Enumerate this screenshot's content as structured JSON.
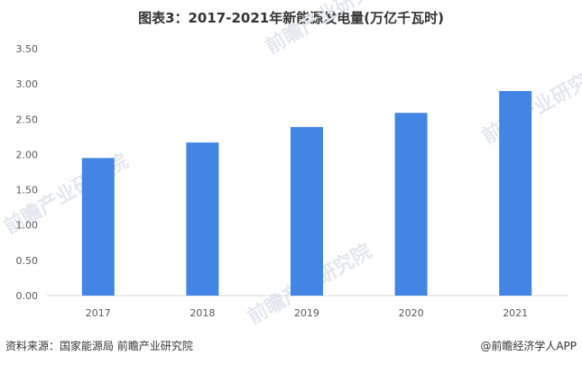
{
  "title": "图表3：2017-2021年新能源发电量(万亿千瓦时)",
  "watermark": {
    "brand": "前瞻产业研究院"
  },
  "footer": {
    "source": "资料来源：国家能源局 前瞻产业研究院",
    "credit": "@前瞻经济学人APP"
  },
  "colors": {
    "bar": "#4285e4",
    "axis": "#d9d9d9",
    "grid": "#ffffff",
    "text": "#595959"
  },
  "chart_data": {
    "type": "bar",
    "categories": [
      "2017",
      "2018",
      "2019",
      "2020",
      "2021"
    ],
    "values": [
      1.95,
      2.17,
      2.39,
      2.59,
      2.9
    ],
    "title": "图表3：2017-2021年新能源发电量(万亿千瓦时)",
    "xlabel": "",
    "ylabel": "",
    "ylim": [
      0,
      3.5
    ],
    "yticks": [
      "0.00",
      "0.50",
      "1.00",
      "1.50",
      "2.00",
      "2.50",
      "3.00",
      "3.50"
    ],
    "grid": false,
    "legend": "none"
  }
}
